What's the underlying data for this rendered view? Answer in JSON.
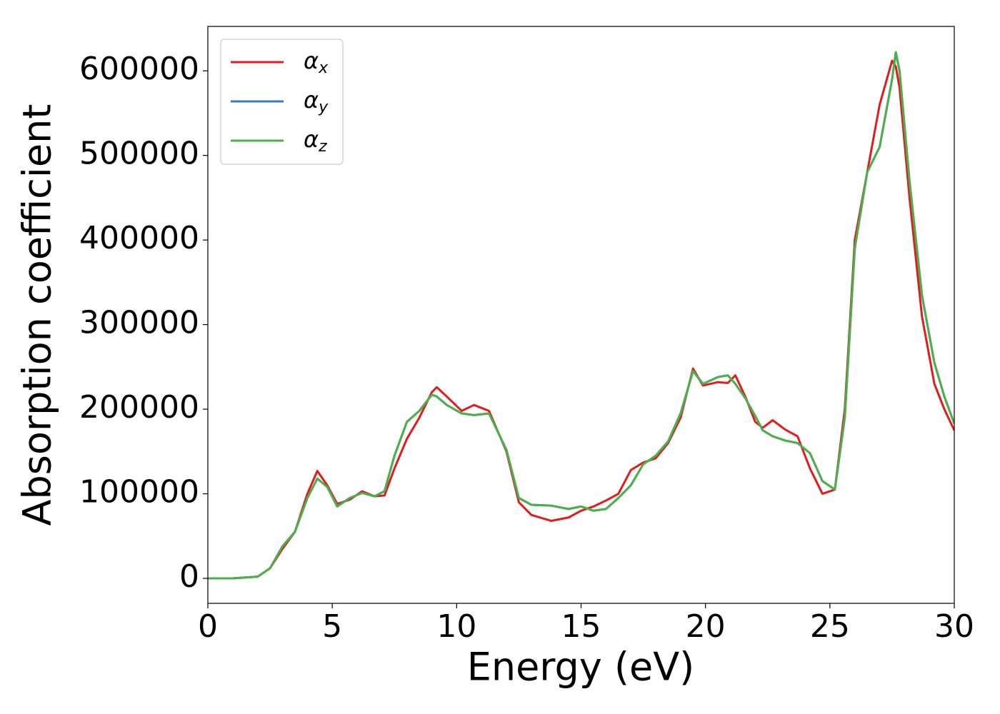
{
  "chart_data": {
    "type": "line",
    "xlabel": "Energy (eV)",
    "ylabel": "Absorption coefficient",
    "x": [
      0,
      1,
      2,
      2.5,
      3,
      3.5,
      4,
      4.4,
      4.8,
      5.2,
      5.7,
      6.2,
      6.7,
      7.1,
      7.5,
      8,
      8.5,
      9,
      9.2,
      9.6,
      10.2,
      10.7,
      11.3,
      12,
      12.5,
      13,
      13.8,
      14.5,
      15,
      15.5,
      16,
      16.5,
      17,
      17.5,
      18,
      18.5,
      19,
      19.5,
      19.9,
      20.5,
      20.9,
      21.2,
      21.6,
      22,
      22.3,
      22.7,
      23.2,
      23.7,
      24.2,
      24.7,
      25.2,
      25.6,
      26,
      26.5,
      27,
      27.5,
      27.65,
      27.8,
      28.2,
      28.7,
      29.2,
      29.6,
      30
    ],
    "series": [
      {
        "name": "αx",
        "color": "#e41a1c",
        "values": [
          0,
          0,
          2000,
          12000,
          35000,
          55000,
          100000,
          127000,
          110000,
          88000,
          93000,
          103000,
          97000,
          98000,
          130000,
          165000,
          190000,
          220000,
          226000,
          215000,
          198000,
          205000,
          198000,
          150000,
          90000,
          75000,
          68000,
          72000,
          80000,
          85000,
          92000,
          100000,
          128000,
          137000,
          142000,
          160000,
          190000,
          248000,
          228000,
          232000,
          231000,
          240000,
          215000,
          185000,
          178000,
          187000,
          176000,
          168000,
          130000,
          100000,
          105000,
          200000,
          400000,
          480000,
          560000,
          612000,
          605000,
          580000,
          450000,
          310000,
          230000,
          200000,
          175000
        ]
      },
      {
        "name": "αy",
        "color": "#377eb8",
        "values": [
          0,
          0,
          2000,
          12000,
          38000,
          55000,
          95000,
          118000,
          108000,
          85000,
          95000,
          101000,
          97000,
          103000,
          145000,
          185000,
          198000,
          217000,
          215000,
          205000,
          195000,
          193000,
          195000,
          152000,
          95000,
          87000,
          86000,
          82000,
          85000,
          80000,
          82000,
          95000,
          110000,
          135000,
          145000,
          162000,
          195000,
          245000,
          230000,
          238000,
          240000,
          230000,
          213000,
          192000,
          175000,
          168000,
          163000,
          160000,
          148000,
          115000,
          105000,
          190000,
          390000,
          480000,
          510000,
          590000,
          622000,
          600000,
          470000,
          335000,
          255000,
          215000,
          183000
        ]
      },
      {
        "name": "αz",
        "color": "#4daf4a",
        "values": [
          0,
          0,
          2000,
          12000,
          38000,
          55000,
          95000,
          118000,
          108000,
          85000,
          95000,
          101000,
          97000,
          103000,
          145000,
          185000,
          198000,
          217000,
          215000,
          205000,
          195000,
          193000,
          195000,
          152000,
          95000,
          87000,
          86000,
          82000,
          85000,
          80000,
          82000,
          95000,
          110000,
          135000,
          145000,
          162000,
          195000,
          245000,
          230000,
          238000,
          240000,
          230000,
          213000,
          192000,
          175000,
          168000,
          163000,
          160000,
          148000,
          115000,
          105000,
          190000,
          390000,
          480000,
          510000,
          590000,
          622000,
          600000,
          470000,
          335000,
          255000,
          215000,
          183000
        ]
      }
    ],
    "xlim": [
      0,
      30
    ],
    "xticks": [
      0,
      5,
      10,
      15,
      20,
      25,
      30
    ],
    "ylim": [
      -29500,
      652500
    ],
    "yticks": [
      0,
      100000,
      200000,
      300000,
      400000,
      500000,
      600000
    ],
    "grid": false,
    "legend": "upper left"
  }
}
